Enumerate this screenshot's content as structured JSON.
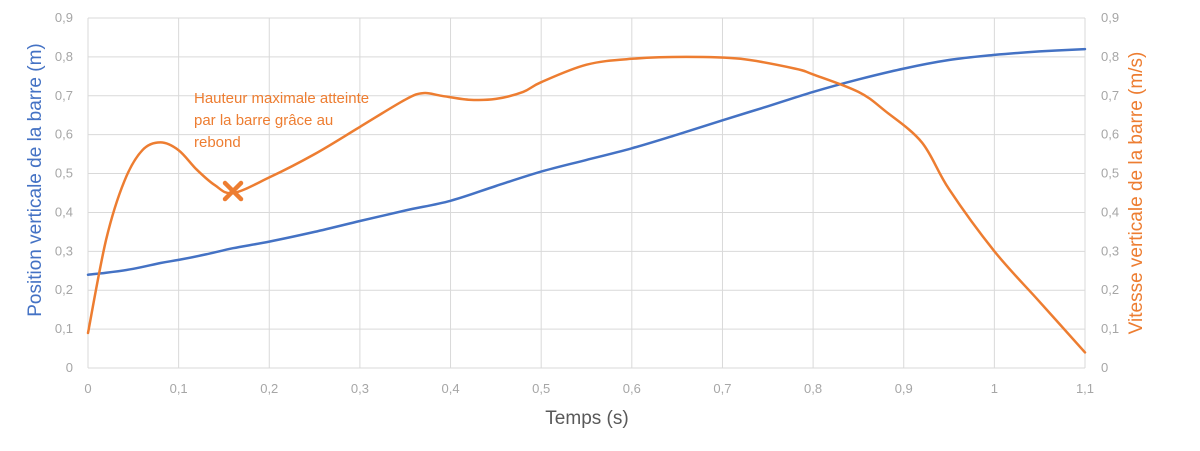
{
  "chart_data": {
    "type": "line",
    "xlabel": "Temps (s)",
    "ylabel_left": "Position verticale de la barre (m)",
    "ylabel_right": "Vitesse verticale de la barre (m/s)",
    "xlim": [
      0,
      1.1
    ],
    "ylim_left": [
      0,
      0.9
    ],
    "ylim_right": [
      0,
      0.9
    ],
    "x_ticks": [
      "0",
      "0,1",
      "0,2",
      "0,3",
      "0,4",
      "0,5",
      "0,6",
      "0,7",
      "0,8",
      "0,9",
      "1",
      "1,1"
    ],
    "y_ticks_left": [
      "0",
      "0,1",
      "0,2",
      "0,3",
      "0,4",
      "0,5",
      "0,6",
      "0,7",
      "0,8",
      "0,9"
    ],
    "y_ticks_right": [
      "0",
      "0,1",
      "0,2",
      "0,3",
      "0,4",
      "0,5",
      "0,6",
      "0,7",
      "0,8",
      "0,9"
    ],
    "grid": true,
    "series": [
      {
        "axis": "left",
        "color": "#4472c4",
        "x": [
          0,
          0.02,
          0.05,
          0.08,
          0.1,
          0.13,
          0.16,
          0.2,
          0.25,
          0.3,
          0.35,
          0.4,
          0.45,
          0.5,
          0.55,
          0.6,
          0.65,
          0.7,
          0.75,
          0.8,
          0.85,
          0.9,
          0.95,
          1.0,
          1.05,
          1.1
        ],
        "values": [
          0.24,
          0.245,
          0.255,
          0.27,
          0.278,
          0.292,
          0.308,
          0.325,
          0.35,
          0.378,
          0.405,
          0.43,
          0.468,
          0.505,
          0.535,
          0.565,
          0.6,
          0.637,
          0.673,
          0.71,
          0.742,
          0.77,
          0.792,
          0.805,
          0.814,
          0.82
        ]
      },
      {
        "axis": "right",
        "color": "#ed7d31",
        "x": [
          0,
          0.02,
          0.04,
          0.06,
          0.08,
          0.1,
          0.12,
          0.14,
          0.16,
          0.2,
          0.25,
          0.3,
          0.35,
          0.37,
          0.39,
          0.42,
          0.45,
          0.48,
          0.5,
          0.55,
          0.6,
          0.66,
          0.72,
          0.78,
          0.8,
          0.85,
          0.88,
          0.92,
          0.95,
          1.0,
          1.05,
          1.1
        ],
        "values": [
          0.09,
          0.33,
          0.48,
          0.56,
          0.58,
          0.56,
          0.51,
          0.47,
          0.45,
          0.49,
          0.55,
          0.62,
          0.69,
          0.707,
          0.7,
          0.69,
          0.692,
          0.71,
          0.735,
          0.78,
          0.795,
          0.8,
          0.795,
          0.77,
          0.755,
          0.71,
          0.66,
          0.58,
          0.46,
          0.3,
          0.17,
          0.04
        ]
      }
    ],
    "annotation": {
      "lines": [
        "Hauteur maximale atteinte",
        "par la barre grâce au",
        "rebond"
      ],
      "marker_x": 0.16,
      "marker_y": 0.455,
      "marker_axis": "right",
      "color": "#ed7d31"
    }
  }
}
